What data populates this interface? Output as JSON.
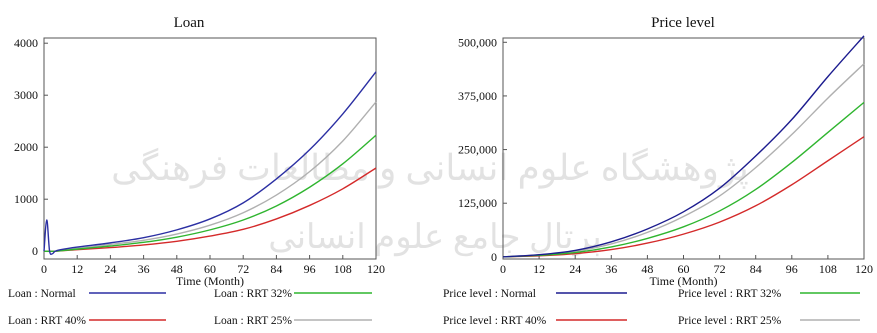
{
  "watermark": {
    "line1": "پژوهشگاه علوم انسانی و مطالعات فرهنگی",
    "line2": "پرتال جامع علوم انسانی"
  },
  "chart_data": [
    {
      "type": "line",
      "title": "Loan",
      "xlabel": "Time (Month)",
      "ylabel": "",
      "xlim": [
        0,
        120
      ],
      "ylim": [
        -150,
        4100
      ],
      "x_ticks": [
        0,
        12,
        24,
        36,
        48,
        60,
        72,
        84,
        96,
        108,
        120
      ],
      "y_ticks": [
        0,
        1000,
        2000,
        3000,
        4000
      ],
      "y_tick_labels": [
        "0",
        "1000",
        "2000",
        "3000",
        "4000"
      ],
      "grid": false,
      "legend_position": "bottom",
      "series": [
        {
          "name": "Loan : Normal",
          "color": "#2b2fa3",
          "x": [
            0,
            1,
            2,
            3,
            4,
            6,
            12,
            24,
            36,
            48,
            60,
            72,
            84,
            96,
            108,
            120
          ],
          "y": [
            0,
            600,
            10,
            -50,
            0,
            30,
            80,
            160,
            260,
            410,
            620,
            930,
            1390,
            1950,
            2640,
            3450
          ]
        },
        {
          "name": "Loan : RRT 32%",
          "color": "#2fb52f",
          "x": [
            0,
            4,
            12,
            24,
            36,
            48,
            60,
            72,
            84,
            96,
            108,
            120
          ],
          "y": [
            0,
            0,
            40,
            100,
            170,
            270,
            410,
            600,
            870,
            1230,
            1680,
            2230
          ]
        },
        {
          "name": "Loan : RRT 40%",
          "color": "#d42a2a",
          "x": [
            0,
            4,
            12,
            24,
            36,
            48,
            60,
            72,
            84,
            96,
            108,
            120
          ],
          "y": [
            0,
            0,
            30,
            70,
            120,
            190,
            290,
            420,
            620,
            880,
            1200,
            1600
          ]
        },
        {
          "name": "Loan : RRT 25%",
          "color": "#b0b0b0",
          "x": [
            0,
            4,
            12,
            24,
            36,
            48,
            60,
            72,
            84,
            96,
            108,
            120
          ],
          "y": [
            0,
            0,
            55,
            130,
            210,
            330,
            500,
            740,
            1080,
            1530,
            2120,
            2870
          ]
        }
      ]
    },
    {
      "type": "line",
      "title": "Price level",
      "xlabel": "Time (Month)",
      "ylabel": "",
      "xlim": [
        0,
        120
      ],
      "ylim": [
        -5000,
        510000
      ],
      "x_ticks": [
        0,
        12,
        24,
        36,
        48,
        60,
        72,
        84,
        96,
        108,
        120
      ],
      "y_ticks": [
        0,
        125000,
        250000,
        375000,
        500000
      ],
      "y_tick_labels": [
        "0",
        "125,000",
        "250,000",
        "375,000",
        "500,000"
      ],
      "grid": false,
      "legend_position": "bottom",
      "series": [
        {
          "name": "Price level : Normal",
          "color": "#1c1c8f",
          "x": [
            0,
            12,
            24,
            36,
            48,
            60,
            72,
            84,
            96,
            108,
            120
          ],
          "y": [
            0,
            5000,
            15000,
            35000,
            65000,
            105000,
            160000,
            235000,
            320000,
            420000,
            515000
          ]
        },
        {
          "name": "Price level : RRT 32%",
          "color": "#2fb52f",
          "x": [
            0,
            12,
            24,
            36,
            48,
            60,
            72,
            84,
            96,
            108,
            120
          ],
          "y": [
            0,
            3500,
            10000,
            23000,
            43000,
            70000,
            107000,
            157000,
            220000,
            290000,
            360000
          ]
        },
        {
          "name": "Price level : RRT 40%",
          "color": "#d42a2a",
          "x": [
            0,
            12,
            24,
            36,
            48,
            60,
            72,
            84,
            96,
            108,
            120
          ],
          "y": [
            0,
            2500,
            7500,
            17000,
            32000,
            53000,
            81000,
            119000,
            168000,
            224000,
            280000
          ]
        },
        {
          "name": "Price level : RRT 25%",
          "color": "#b0b0b0",
          "x": [
            0,
            12,
            24,
            36,
            48,
            60,
            72,
            84,
            96,
            108,
            120
          ],
          "y": [
            0,
            4500,
            13000,
            30000,
            57000,
            94000,
            142000,
            208000,
            285000,
            370000,
            450000
          ]
        }
      ]
    }
  ]
}
